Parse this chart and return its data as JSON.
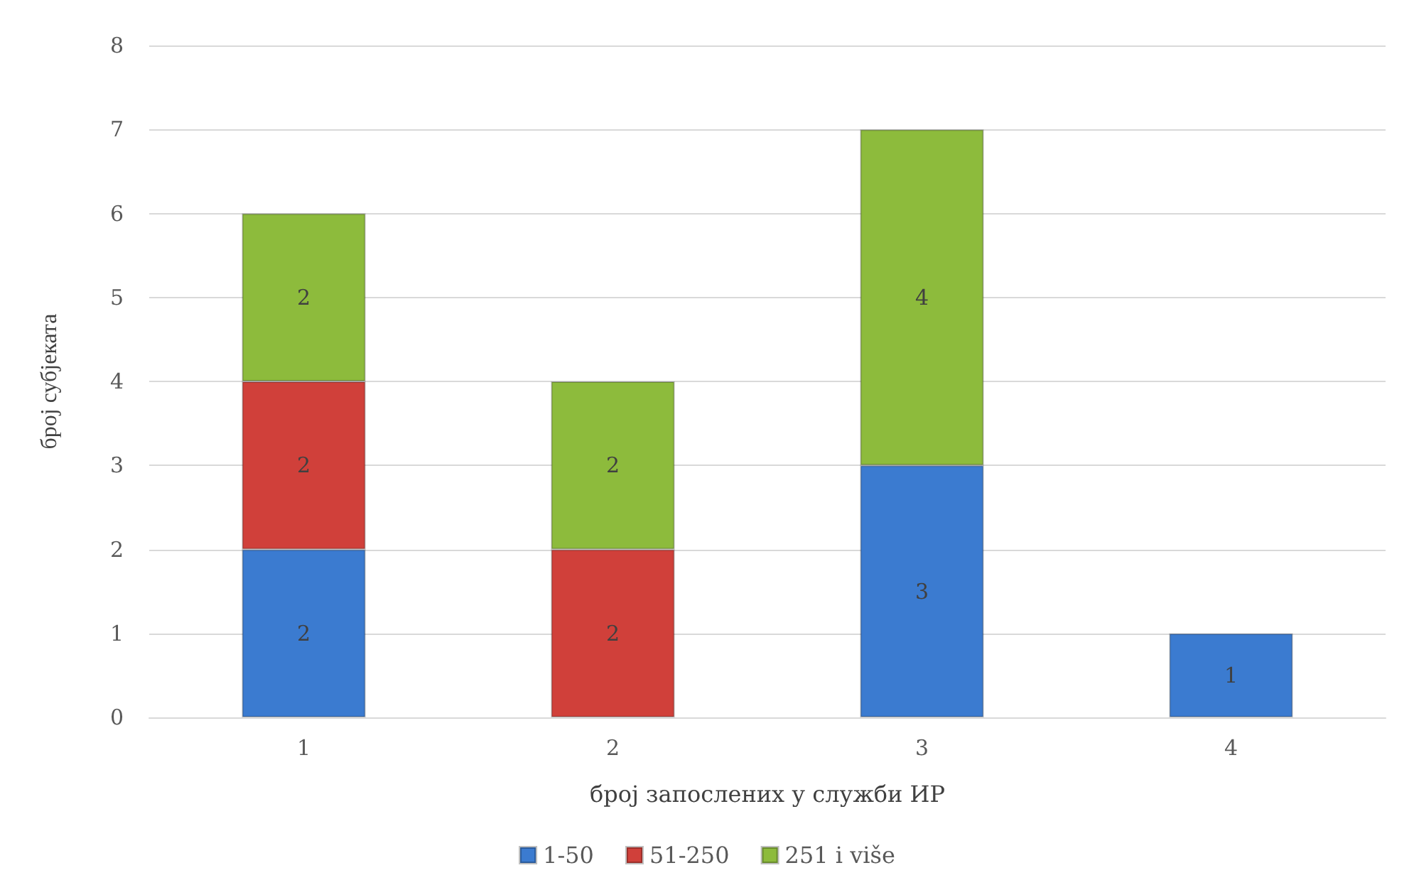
{
  "chart_data": {
    "type": "bar",
    "stacked": true,
    "categories": [
      "1",
      "2",
      "3",
      "4"
    ],
    "series": [
      {
        "name": "1-50",
        "color": "#3b7bd0",
        "values": [
          2,
          null,
          3,
          1
        ]
      },
      {
        "name": "51-250",
        "color": "#d0403a",
        "values": [
          2,
          2,
          null,
          null
        ]
      },
      {
        "name": "251 i više",
        "color": "#8dbb3c",
        "values": [
          2,
          2,
          4,
          null
        ]
      }
    ],
    "xlabel": "број запослених у служби ИР",
    "ylabel": "број субјеката",
    "ylim": [
      0,
      8
    ],
    "yticks": [
      0,
      1,
      2,
      3,
      4,
      5,
      6,
      7,
      8
    ],
    "grid": "y",
    "legend": "bottom",
    "data_labels": true
  }
}
